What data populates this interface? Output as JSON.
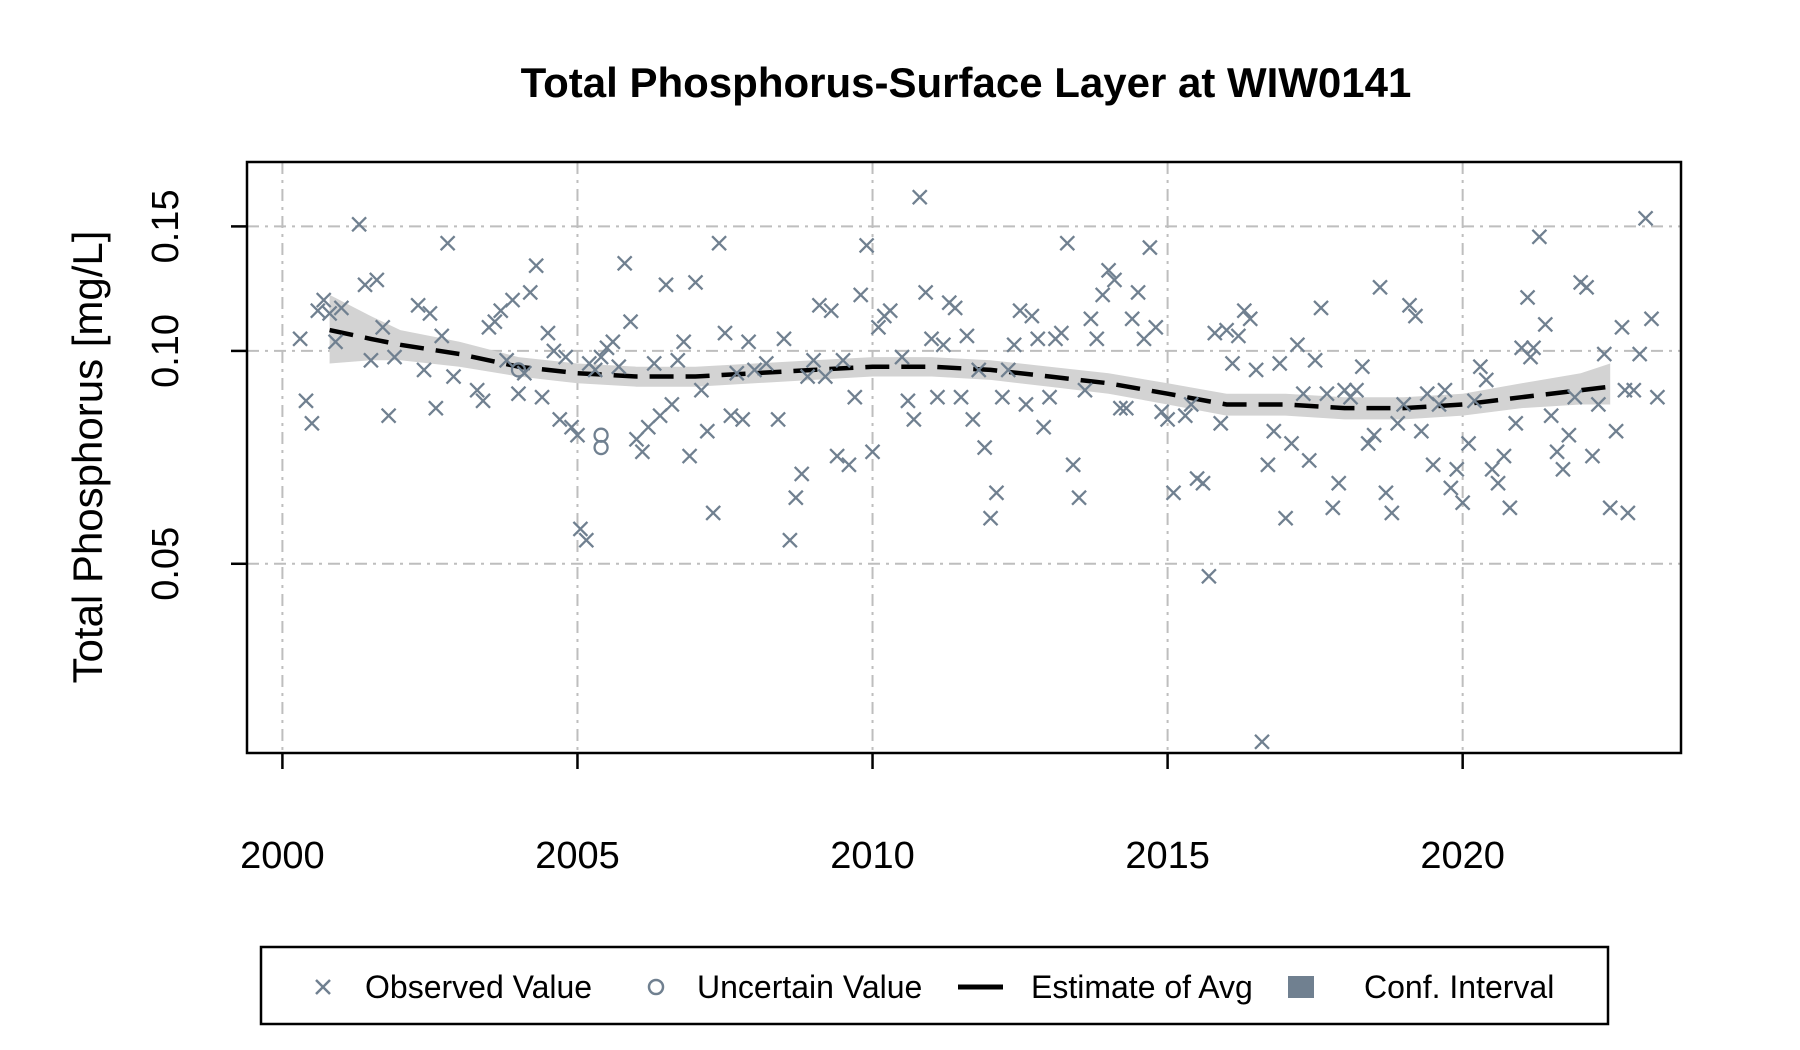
{
  "chart_data": {
    "type": "scatter",
    "title": "Total Phosphorus-Surface Layer at WIW0141",
    "xlabel": "",
    "ylabel": "Total Phosphorus [mg/L]",
    "x_ticks": [
      2000,
      2005,
      2010,
      2015,
      2020
    ],
    "y_ticks": [
      0.05,
      0.1,
      0.15
    ],
    "y_tick_labels": [
      "0.05",
      "0.10",
      "0.15"
    ],
    "y_scale": "log",
    "xlim": [
      1999.4,
      2023.7
    ],
    "ylim": [
      0.027,
      0.185
    ],
    "grid": true,
    "legend_position": "bottom",
    "legend": [
      {
        "label": "Observed Value",
        "marker": "x"
      },
      {
        "label": "Uncertain Value",
        "marker": "o"
      },
      {
        "label": "Estimate of Avg",
        "marker": "dashed-line"
      },
      {
        "label": "Conf. Interval",
        "marker": "square"
      }
    ],
    "colors": {
      "observed": "#708090",
      "uncertain": "#708090",
      "estimate": "#000000",
      "ci": "#d3d3d3",
      "ci_legend": "#708090",
      "grid": "#bebebe"
    },
    "series": [
      {
        "name": "Observed Value",
        "kind": "scatter",
        "points": [
          [
            2000.3,
            0.104
          ],
          [
            2000.4,
            0.085
          ],
          [
            2000.5,
            0.079
          ],
          [
            2000.6,
            0.114
          ],
          [
            2000.7,
            0.118
          ],
          [
            2000.8,
            0.113
          ],
          [
            2000.9,
            0.103
          ],
          [
            2001.0,
            0.115
          ],
          [
            2001.3,
            0.151
          ],
          [
            2001.4,
            0.124
          ],
          [
            2001.5,
            0.097
          ],
          [
            2001.6,
            0.126
          ],
          [
            2001.7,
            0.108
          ],
          [
            2001.8,
            0.081
          ],
          [
            2001.9,
            0.098
          ],
          [
            2002.3,
            0.116
          ],
          [
            2002.4,
            0.094
          ],
          [
            2002.5,
            0.113
          ],
          [
            2002.6,
            0.083
          ],
          [
            2002.7,
            0.105
          ],
          [
            2002.8,
            0.142
          ],
          [
            2002.9,
            0.092
          ],
          [
            2003.3,
            0.088
          ],
          [
            2003.4,
            0.085
          ],
          [
            2003.5,
            0.108
          ],
          [
            2003.6,
            0.11
          ],
          [
            2003.7,
            0.114
          ],
          [
            2003.8,
            0.097
          ],
          [
            2003.9,
            0.118
          ],
          [
            2004.0,
            0.087
          ],
          [
            2004.1,
            0.093
          ],
          [
            2004.2,
            0.121
          ],
          [
            2004.3,
            0.132
          ],
          [
            2004.4,
            0.086
          ],
          [
            2004.5,
            0.106
          ],
          [
            2004.6,
            0.1
          ],
          [
            2004.7,
            0.08
          ],
          [
            2004.8,
            0.098
          ],
          [
            2004.9,
            0.078
          ],
          [
            2005.0,
            0.076
          ],
          [
            2005.05,
            0.056
          ],
          [
            2005.15,
            0.054
          ],
          [
            2005.2,
            0.096
          ],
          [
            2005.3,
            0.094
          ],
          [
            2005.4,
            0.098
          ],
          [
            2005.5,
            0.101
          ],
          [
            2005.6,
            0.103
          ],
          [
            2005.7,
            0.095
          ],
          [
            2005.8,
            0.133
          ],
          [
            2005.9,
            0.11
          ],
          [
            2006.0,
            0.075
          ],
          [
            2006.1,
            0.072
          ],
          [
            2006.2,
            0.078
          ],
          [
            2006.3,
            0.096
          ],
          [
            2006.4,
            0.081
          ],
          [
            2006.5,
            0.124
          ],
          [
            2006.6,
            0.084
          ],
          [
            2006.7,
            0.097
          ],
          [
            2006.8,
            0.103
          ],
          [
            2006.9,
            0.071
          ],
          [
            2007.0,
            0.125
          ],
          [
            2007.1,
            0.088
          ],
          [
            2007.2,
            0.077
          ],
          [
            2007.3,
            0.059
          ],
          [
            2007.4,
            0.142
          ],
          [
            2007.5,
            0.106
          ],
          [
            2007.6,
            0.081
          ],
          [
            2007.7,
            0.093
          ],
          [
            2007.8,
            0.08
          ],
          [
            2007.9,
            0.103
          ],
          [
            2008.0,
            0.094
          ],
          [
            2008.2,
            0.096
          ],
          [
            2008.4,
            0.08
          ],
          [
            2008.5,
            0.104
          ],
          [
            2008.6,
            0.054
          ],
          [
            2008.7,
            0.062
          ],
          [
            2008.8,
            0.067
          ],
          [
            2008.9,
            0.092
          ],
          [
            2009.0,
            0.097
          ],
          [
            2009.1,
            0.116
          ],
          [
            2009.2,
            0.092
          ],
          [
            2009.3,
            0.114
          ],
          [
            2009.4,
            0.071
          ],
          [
            2009.5,
            0.097
          ],
          [
            2009.6,
            0.069
          ],
          [
            2009.7,
            0.086
          ],
          [
            2009.8,
            0.12
          ],
          [
            2009.9,
            0.141
          ],
          [
            2010.0,
            0.072
          ],
          [
            2010.1,
            0.108
          ],
          [
            2010.2,
            0.112
          ],
          [
            2010.3,
            0.114
          ],
          [
            2010.5,
            0.098
          ],
          [
            2010.6,
            0.085
          ],
          [
            2010.7,
            0.08
          ],
          [
            2010.8,
            0.165
          ],
          [
            2010.9,
            0.121
          ],
          [
            2011.0,
            0.104
          ],
          [
            2011.1,
            0.086
          ],
          [
            2011.2,
            0.102
          ],
          [
            2011.3,
            0.117
          ],
          [
            2011.4,
            0.115
          ],
          [
            2011.5,
            0.086
          ],
          [
            2011.6,
            0.105
          ],
          [
            2011.7,
            0.08
          ],
          [
            2011.8,
            0.094
          ],
          [
            2011.9,
            0.073
          ],
          [
            2012.0,
            0.058
          ],
          [
            2012.1,
            0.063
          ],
          [
            2012.2,
            0.086
          ],
          [
            2012.3,
            0.094
          ],
          [
            2012.4,
            0.102
          ],
          [
            2012.5,
            0.114
          ],
          [
            2012.6,
            0.084
          ],
          [
            2012.7,
            0.112
          ],
          [
            2012.8,
            0.104
          ],
          [
            2012.9,
            0.078
          ],
          [
            2013.0,
            0.086
          ],
          [
            2013.1,
            0.104
          ],
          [
            2013.2,
            0.106
          ],
          [
            2013.3,
            0.142
          ],
          [
            2013.4,
            0.069
          ],
          [
            2013.5,
            0.062
          ],
          [
            2013.6,
            0.088
          ],
          [
            2013.7,
            0.111
          ],
          [
            2013.8,
            0.104
          ],
          [
            2013.9,
            0.12
          ],
          [
            2014.0,
            0.13
          ],
          [
            2014.1,
            0.126
          ],
          [
            2014.2,
            0.083
          ],
          [
            2014.3,
            0.083
          ],
          [
            2014.4,
            0.111
          ],
          [
            2014.5,
            0.121
          ],
          [
            2014.6,
            0.104
          ],
          [
            2014.7,
            0.14
          ],
          [
            2014.8,
            0.108
          ],
          [
            2014.9,
            0.082
          ],
          [
            2015.0,
            0.08
          ],
          [
            2015.1,
            0.063
          ],
          [
            2015.3,
            0.081
          ],
          [
            2015.4,
            0.084
          ],
          [
            2015.5,
            0.066
          ],
          [
            2015.6,
            0.065
          ],
          [
            2015.7,
            0.048
          ],
          [
            2015.8,
            0.106
          ],
          [
            2015.9,
            0.079
          ],
          [
            2016.0,
            0.107
          ],
          [
            2016.1,
            0.096
          ],
          [
            2016.2,
            0.105
          ],
          [
            2016.3,
            0.114
          ],
          [
            2016.4,
            0.111
          ],
          [
            2016.5,
            0.094
          ],
          [
            2016.6,
            0.028
          ],
          [
            2016.7,
            0.069
          ],
          [
            2016.8,
            0.077
          ],
          [
            2016.9,
            0.096
          ],
          [
            2017.0,
            0.058
          ],
          [
            2017.1,
            0.074
          ],
          [
            2017.2,
            0.102
          ],
          [
            2017.3,
            0.087
          ],
          [
            2017.4,
            0.07
          ],
          [
            2017.5,
            0.097
          ],
          [
            2017.6,
            0.115
          ],
          [
            2017.7,
            0.087
          ],
          [
            2017.8,
            0.06
          ],
          [
            2017.9,
            0.065
          ],
          [
            2018.0,
            0.088
          ],
          [
            2018.1,
            0.086
          ],
          [
            2018.2,
            0.088
          ],
          [
            2018.3,
            0.095
          ],
          [
            2018.4,
            0.074
          ],
          [
            2018.5,
            0.076
          ],
          [
            2018.6,
            0.123
          ],
          [
            2018.7,
            0.063
          ],
          [
            2018.8,
            0.059
          ],
          [
            2018.9,
            0.079
          ],
          [
            2019.0,
            0.084
          ],
          [
            2019.1,
            0.116
          ],
          [
            2019.2,
            0.112
          ],
          [
            2019.3,
            0.077
          ],
          [
            2019.4,
            0.087
          ],
          [
            2019.5,
            0.069
          ],
          [
            2019.6,
            0.084
          ],
          [
            2019.7,
            0.088
          ],
          [
            2019.8,
            0.064
          ],
          [
            2019.9,
            0.068
          ],
          [
            2020.0,
            0.061
          ],
          [
            2020.1,
            0.074
          ],
          [
            2020.2,
            0.085
          ],
          [
            2020.3,
            0.095
          ],
          [
            2020.4,
            0.091
          ],
          [
            2020.5,
            0.068
          ],
          [
            2020.6,
            0.065
          ],
          [
            2020.7,
            0.071
          ],
          [
            2020.8,
            0.06
          ],
          [
            2020.9,
            0.079
          ],
          [
            2021.0,
            0.101
          ],
          [
            2021.1,
            0.119
          ],
          [
            2021.15,
            0.098
          ],
          [
            2021.2,
            0.101
          ],
          [
            2021.3,
            0.145
          ],
          [
            2021.4,
            0.109
          ],
          [
            2021.5,
            0.081
          ],
          [
            2021.6,
            0.072
          ],
          [
            2021.7,
            0.068
          ],
          [
            2021.8,
            0.076
          ],
          [
            2021.9,
            0.086
          ],
          [
            2022.0,
            0.125
          ],
          [
            2022.1,
            0.123
          ],
          [
            2022.2,
            0.071
          ],
          [
            2022.3,
            0.084
          ],
          [
            2022.4,
            0.099
          ],
          [
            2022.5,
            0.06
          ],
          [
            2022.6,
            0.077
          ],
          [
            2022.7,
            0.108
          ],
          [
            2022.75,
            0.088
          ],
          [
            2022.8,
            0.059
          ],
          [
            2022.9,
            0.088
          ],
          [
            2023.0,
            0.099
          ],
          [
            2023.1,
            0.154
          ],
          [
            2023.2,
            0.111
          ],
          [
            2023.3,
            0.086
          ]
        ]
      },
      {
        "name": "Uncertain Value",
        "kind": "scatter",
        "points": [
          [
            2004.0,
            0.094
          ],
          [
            2005.4,
            0.076
          ],
          [
            2005.4,
            0.073
          ]
        ]
      },
      {
        "name": "Estimate of Avg",
        "kind": "line",
        "x": [
          2000.8,
          2001.5,
          2002.0,
          2003.0,
          2004.0,
          2005.0,
          2006.0,
          2007.0,
          2008.0,
          2009.0,
          2010.0,
          2011.0,
          2012.0,
          2013.0,
          2014.0,
          2015.0,
          2016.0,
          2017.0,
          2018.0,
          2019.0,
          2020.0,
          2021.0,
          2022.0,
          2022.5
        ],
        "y": [
          0.107,
          0.104,
          0.102,
          0.099,
          0.095,
          0.093,
          0.092,
          0.092,
          0.093,
          0.094,
          0.095,
          0.095,
          0.094,
          0.092,
          0.09,
          0.087,
          0.084,
          0.084,
          0.083,
          0.083,
          0.084,
          0.086,
          0.088,
          0.089
        ]
      },
      {
        "name": "Conf. Interval",
        "kind": "band",
        "x": [
          2000.8,
          2001.5,
          2002.0,
          2003.0,
          2004.0,
          2005.0,
          2006.0,
          2007.0,
          2008.0,
          2009.0,
          2010.0,
          2011.0,
          2012.0,
          2013.0,
          2014.0,
          2015.0,
          2016.0,
          2017.0,
          2018.0,
          2019.0,
          2020.0,
          2021.0,
          2022.0,
          2022.5
        ],
        "lower": [
          0.096,
          0.097,
          0.097,
          0.095,
          0.092,
          0.09,
          0.089,
          0.089,
          0.09,
          0.091,
          0.092,
          0.092,
          0.091,
          0.089,
          0.087,
          0.084,
          0.081,
          0.081,
          0.08,
          0.08,
          0.081,
          0.083,
          0.084,
          0.084
        ],
        "upper": [
          0.12,
          0.112,
          0.107,
          0.103,
          0.098,
          0.096,
          0.095,
          0.095,
          0.096,
          0.097,
          0.098,
          0.098,
          0.097,
          0.095,
          0.093,
          0.09,
          0.087,
          0.087,
          0.086,
          0.086,
          0.087,
          0.09,
          0.093,
          0.096
        ]
      }
    ]
  }
}
